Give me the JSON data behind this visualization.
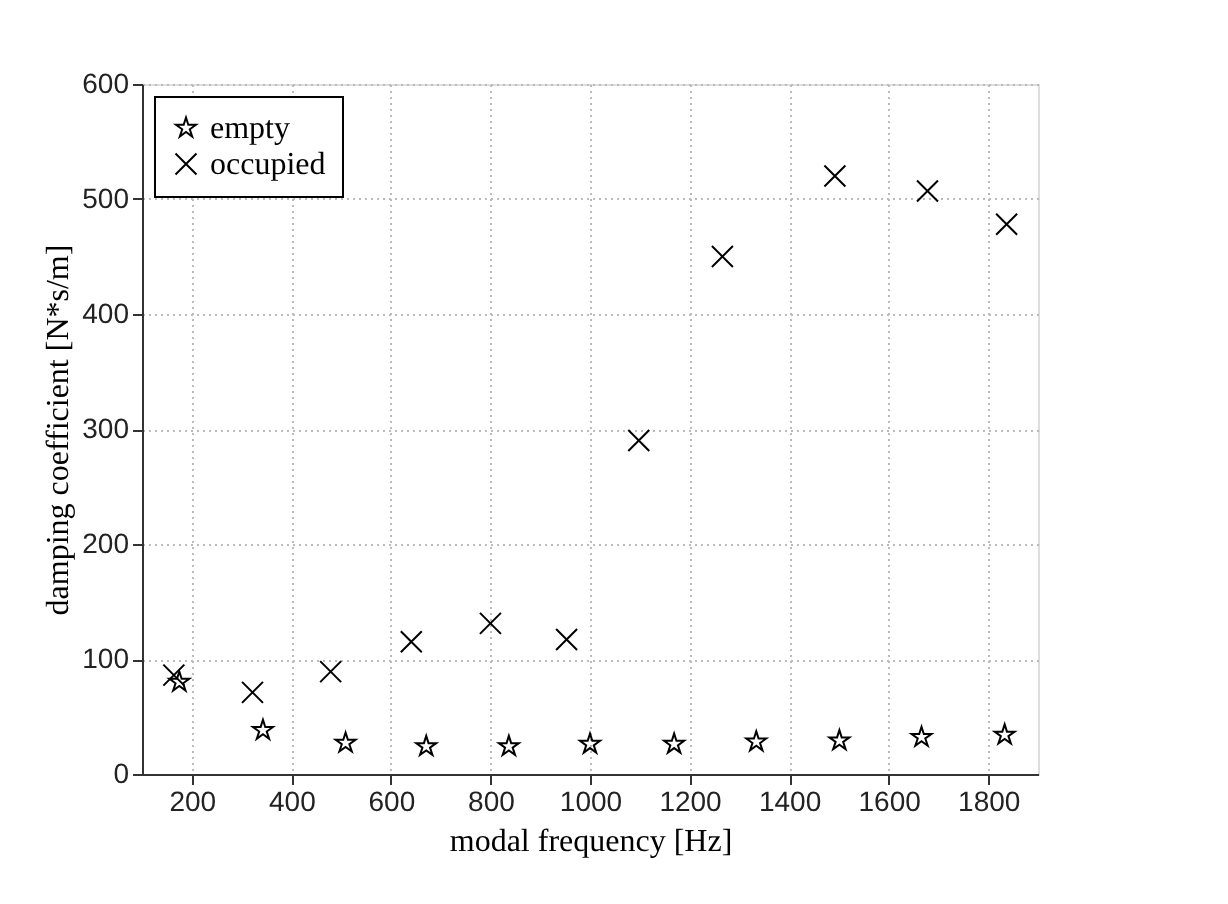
{
  "chart_data": {
    "type": "scatter",
    "xlabel": "modal frequency [Hz]",
    "ylabel": "damping coefficient [N*s/m]",
    "series": [
      {
        "name": "empty",
        "color": "#000000",
        "marker": "star",
        "x": [
          175,
          343,
          509,
          671,
          837,
          1000,
          1169,
          1334,
          1501,
          1666,
          1833
        ],
        "values": [
          80,
          38,
          27,
          24,
          24,
          26,
          26,
          28,
          29,
          32,
          34
        ]
      },
      {
        "name": "occupied",
        "color": "#000000",
        "marker": "cross",
        "x": [
          164,
          322,
          479,
          641,
          800,
          953,
          1098,
          1266,
          1492,
          1678,
          1837
        ],
        "values": [
          86,
          71,
          89,
          115,
          131,
          117,
          290,
          450,
          520,
          507,
          478
        ]
      }
    ],
    "xlim": [
      100,
      1900
    ],
    "xticks": [
      200,
      400,
      600,
      800,
      1000,
      1200,
      1400,
      1600,
      1800
    ],
    "ylim": [
      0,
      600
    ],
    "yticks": [
      0,
      100,
      200,
      300,
      400,
      500,
      600
    ],
    "grid": true,
    "legend": "top left"
  }
}
